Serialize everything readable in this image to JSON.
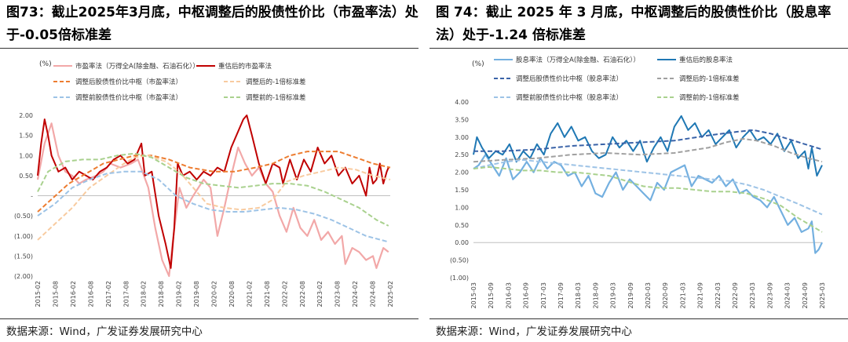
{
  "charts": [
    {
      "title": "图73：截止2025年3月底，中枢调整后的股债性价比（市盈率法）处于-0.05倍标准差",
      "source": "数据来源：Wind，广发证券发展研究中心"
    },
    {
      "title": "图 74：截止 2025 年 3 月底，中枢调整后的股债性价比（股息率法）处于-1.24 倍标准差",
      "source": "数据来源：Wind，广发证券发展研究中心"
    }
  ],
  "chart_data": [
    {
      "type": "line",
      "unit_label": "(%)",
      "ylim": [
        -2.0,
        2.0
      ],
      "yticks": [
        "2.00",
        "1.50",
        "1.00",
        "0.50",
        "-",
        "(0.50)",
        "(1.00)",
        "(1.50)",
        "(2.00)"
      ],
      "yvalues": [
        2.0,
        1.5,
        1.0,
        0.5,
        0,
        -0.5,
        -1.0,
        -1.5,
        -2.0
      ],
      "xticks": [
        "2015-02",
        "2015-08",
        "2016-02",
        "2016-08",
        "2017-02",
        "2017-08",
        "2018-02",
        "2018-08",
        "2019-02",
        "2019-08",
        "2020-02",
        "2020-08",
        "2021-02",
        "2021-08",
        "2022-02",
        "2022-08",
        "2023-02",
        "2023-08",
        "2024-02",
        "2024-08",
        "2025-02"
      ],
      "xlim": [
        2015.1,
        2025.3
      ],
      "legend": [
        "市盈率法（万得全A(除金融、石油石化））",
        "重估后的市盈率法",
        "调整后股债性价比中枢（市盈率法）",
        "调整后的-1倍标准差",
        "调整前股债性价比中枢（市盈率法）",
        "调整前的-1倍标准差"
      ],
      "series": [
        {
          "name": "市盈率法（万得全A(除金融、石油石化））",
          "color": "#f2a8a8",
          "style": "solid",
          "width": 2.2,
          "x": [
            2015.1,
            2015.3,
            2015.5,
            2015.7,
            2015.9,
            2016.1,
            2016.3,
            2016.5,
            2016.8,
            2017.0,
            2017.2,
            2017.5,
            2017.8,
            2018.0,
            2018.3,
            2018.5,
            2018.7,
            2018.9,
            2019.0,
            2019.2,
            2019.4,
            2019.6,
            2019.9,
            2020.1,
            2020.3,
            2020.5,
            2020.7,
            2020.9,
            2021.1,
            2021.3,
            2021.5,
            2021.7,
            2021.9,
            2022.1,
            2022.3,
            2022.5,
            2022.7,
            2022.9,
            2023.1,
            2023.3,
            2023.5,
            2023.7,
            2023.9,
            2024.0,
            2024.2,
            2024.4,
            2024.6,
            2024.8,
            2024.9,
            2025.1,
            2025.25
          ],
          "y": [
            0.4,
            1.3,
            1.8,
            1.0,
            0.6,
            0.5,
            0.3,
            0.4,
            0.5,
            0.6,
            0.8,
            0.7,
            0.8,
            0.9,
            0.2,
            -0.8,
            -1.6,
            -2.0,
            -1.2,
            0.2,
            -0.3,
            0.0,
            0.4,
            0.2,
            -1.0,
            -0.3,
            0.5,
            1.2,
            0.8,
            0.5,
            0.7,
            0.3,
            0.1,
            -0.5,
            -0.9,
            -0.3,
            -0.8,
            -1.0,
            -0.6,
            -1.1,
            -0.9,
            -1.2,
            -1.0,
            -1.7,
            -1.3,
            -1.4,
            -1.6,
            -1.5,
            -1.8,
            -1.3,
            -1.4
          ]
        },
        {
          "name": "重估后的市盈率法",
          "color": "#c00000",
          "style": "solid",
          "width": 2.0,
          "x": [
            2015.1,
            2015.2,
            2015.3,
            2015.4,
            2015.5,
            2015.6,
            2015.7,
            2015.9,
            2016.1,
            2016.3,
            2016.5,
            2016.7,
            2016.9,
            2017.1,
            2017.3,
            2017.5,
            2017.7,
            2017.9,
            2018.1,
            2018.2,
            2018.4,
            2018.6,
            2018.8,
            2018.95,
            2019.05,
            2019.15,
            2019.3,
            2019.5,
            2019.7,
            2019.9,
            2020.1,
            2020.3,
            2020.5,
            2020.7,
            2020.9,
            2021.05,
            2021.15,
            2021.3,
            2021.5,
            2021.7,
            2021.9,
            2022.1,
            2022.2,
            2022.4,
            2022.6,
            2022.8,
            2023.0,
            2023.2,
            2023.4,
            2023.6,
            2023.8,
            2024.0,
            2024.2,
            2024.4,
            2024.6,
            2024.7,
            2024.8,
            2024.9,
            2025.0,
            2025.1,
            2025.2,
            2025.25
          ],
          "y": [
            0.5,
            1.3,
            1.9,
            1.5,
            1.0,
            0.8,
            0.6,
            0.7,
            0.4,
            0.6,
            0.5,
            0.4,
            0.6,
            0.7,
            0.9,
            1.0,
            0.8,
            0.9,
            1.3,
            0.5,
            0.6,
            -0.5,
            -1.2,
            -1.8,
            -0.8,
            0.8,
            0.5,
            0.6,
            0.4,
            0.6,
            0.5,
            0.7,
            0.6,
            1.2,
            1.6,
            1.9,
            2.0,
            1.5,
            0.8,
            0.3,
            0.8,
            0.7,
            0.3,
            0.9,
            0.4,
            0.9,
            0.6,
            1.2,
            0.8,
            1.0,
            0.5,
            0.7,
            0.3,
            0.5,
            0.0,
            0.7,
            0.3,
            0.4,
            0.8,
            0.3,
            0.6,
            0.7
          ]
        },
        {
          "name": "调整后股债性价比中枢（市盈率法）",
          "color": "#ed7d31",
          "style": "dash",
          "width": 2.0,
          "x": [
            2015.1,
            2016.0,
            2017.0,
            2017.9,
            2018.4,
            2018.9,
            2019.5,
            2020.2,
            2020.8,
            2021.4,
            2021.9,
            2022.4,
            2022.9,
            2023.3,
            2023.8,
            2024.3,
            2024.8,
            2025.3
          ],
          "y": [
            -0.4,
            0.3,
            0.8,
            1.0,
            1.0,
            0.9,
            0.7,
            0.6,
            0.6,
            0.7,
            0.8,
            1.0,
            1.1,
            1.1,
            1.1,
            0.95,
            0.8,
            0.7
          ]
        },
        {
          "name": "调整后的-1倍标准差",
          "color": "#f8cba0",
          "style": "dash",
          "width": 2.0,
          "x": [
            2015.1,
            2015.6,
            2016.1,
            2016.6,
            2017.1,
            2017.6,
            2017.9,
            2018.3,
            2018.8,
            2019.2,
            2019.6,
            2020.0,
            2020.5,
            2021.0,
            2021.5,
            2021.9,
            2022.3,
            2022.8,
            2023.3,
            2023.8,
            2024.3,
            2024.8,
            2025.3
          ],
          "y": [
            -1.1,
            -0.7,
            -0.3,
            0.2,
            0.5,
            0.8,
            0.95,
            1.0,
            0.85,
            0.6,
            0.2,
            -0.2,
            -0.3,
            -0.35,
            -0.3,
            -0.1,
            0.35,
            0.5,
            0.6,
            0.7,
            0.65,
            0.5,
            0.4
          ]
        },
        {
          "name": "调整前股债性价比中枢（市盈率法）",
          "color": "#9dc3e6",
          "style": "dash",
          "width": 2.0,
          "x": [
            2015.1,
            2015.6,
            2016.1,
            2016.6,
            2017.1,
            2017.6,
            2018.1,
            2018.6,
            2019.1,
            2019.6,
            2020.1,
            2020.6,
            2021.1,
            2021.6,
            2022.1,
            2022.6,
            2023.1,
            2023.6,
            2024.1,
            2024.6,
            2025.25
          ],
          "y": [
            -0.5,
            -0.2,
            0.2,
            0.4,
            0.55,
            0.6,
            0.6,
            0.4,
            0.0,
            -0.2,
            -0.35,
            -0.4,
            -0.4,
            -0.35,
            -0.3,
            -0.35,
            -0.45,
            -0.6,
            -0.8,
            -1.0,
            -1.15
          ]
        },
        {
          "name": "调整前的-1倍标准差",
          "color": "#a9d18e",
          "style": "dash",
          "width": 2.0,
          "x": [
            2015.1,
            2015.4,
            2015.9,
            2016.4,
            2016.9,
            2017.4,
            2017.9,
            2018.4,
            2018.9,
            2019.4,
            2019.9,
            2020.4,
            2020.9,
            2021.4,
            2021.9,
            2022.4,
            2022.9,
            2023.4,
            2023.9,
            2024.4,
            2024.9,
            2025.25
          ],
          "y": [
            0.1,
            0.6,
            0.85,
            0.9,
            0.9,
            1.0,
            1.05,
            0.95,
            0.7,
            0.45,
            0.3,
            0.25,
            0.2,
            0.25,
            0.3,
            0.3,
            0.25,
            0.1,
            -0.1,
            -0.3,
            -0.6,
            -0.75
          ]
        }
      ]
    },
    {
      "type": "line",
      "unit_label": "(%)",
      "ylim": [
        -1.0,
        4.0
      ],
      "yticks": [
        "4.00",
        "3.50",
        "3.00",
        "2.50",
        "2.00",
        "1.50",
        "1.00",
        "0.50",
        "0.00",
        "(0.50)",
        "(1.00)"
      ],
      "yvalues": [
        4.0,
        3.5,
        3.0,
        2.5,
        2.0,
        1.5,
        1.0,
        0.5,
        0.0,
        -0.5,
        -1.0
      ],
      "xticks": [
        "2015-03",
        "2015-09",
        "2016-03",
        "2016-09",
        "2017-03",
        "2017-09",
        "2018-03",
        "2018-09",
        "2019-03",
        "2019-09",
        "2020-03",
        "2020-09",
        "2021-03",
        "2021-09",
        "2022-03",
        "2022-09",
        "2023-03",
        "2023-09",
        "2024-03",
        "2024-09",
        "2025-03"
      ],
      "xlim": [
        2015.15,
        2025.3
      ],
      "legend": [
        "股息率法（万得全A(除金融、石油石化））",
        "重估后的股息率法",
        "调整后股债性价比中枢（股息率法）",
        "调整后的-1倍标准差",
        "调整前股债性价比中枢（股息率法）",
        "调整前的-1倍标准差"
      ],
      "series": [
        {
          "name": "股息率法（万得全A(除金融、石油石化））",
          "color": "#74b0e0",
          "style": "solid",
          "width": 2.2,
          "x": [
            2015.15,
            2015.3,
            2015.5,
            2015.7,
            2015.9,
            2016.1,
            2016.3,
            2016.5,
            2016.7,
            2016.9,
            2017.1,
            2017.3,
            2017.5,
            2017.7,
            2017.9,
            2018.1,
            2018.3,
            2018.5,
            2018.7,
            2018.9,
            2019.1,
            2019.3,
            2019.5,
            2019.7,
            2019.9,
            2020.1,
            2020.3,
            2020.5,
            2020.7,
            2020.9,
            2021.1,
            2021.3,
            2021.5,
            2021.7,
            2021.9,
            2022.1,
            2022.3,
            2022.5,
            2022.7,
            2022.9,
            2023.1,
            2023.3,
            2023.5,
            2023.7,
            2023.9,
            2024.1,
            2024.3,
            2024.5,
            2024.7,
            2024.9,
            2025.0,
            2025.1,
            2025.2,
            2025.3
          ],
          "y": [
            2.1,
            2.2,
            2.5,
            2.2,
            1.9,
            2.4,
            1.8,
            2.0,
            2.3,
            2.0,
            2.4,
            2.1,
            2.3,
            2.2,
            1.9,
            2.0,
            1.6,
            1.9,
            1.4,
            1.3,
            1.7,
            2.0,
            1.5,
            1.8,
            1.6,
            1.4,
            1.2,
            1.7,
            1.5,
            2.0,
            2.1,
            2.2,
            1.6,
            1.9,
            1.8,
            1.7,
            1.9,
            1.6,
            1.8,
            1.4,
            1.5,
            1.3,
            1.2,
            1.0,
            1.3,
            0.9,
            0.5,
            0.7,
            0.3,
            0.4,
            0.6,
            -0.3,
            -0.2,
            0.0
          ]
        },
        {
          "name": "重估后的股息率法",
          "color": "#1f78b4",
          "style": "solid",
          "width": 2.0,
          "x": [
            2015.15,
            2015.25,
            2015.4,
            2015.6,
            2015.8,
            2016.0,
            2016.2,
            2016.4,
            2016.6,
            2016.8,
            2017.0,
            2017.2,
            2017.4,
            2017.6,
            2017.8,
            2018.0,
            2018.2,
            2018.4,
            2018.6,
            2018.8,
            2019.0,
            2019.2,
            2019.4,
            2019.6,
            2019.8,
            2020.0,
            2020.2,
            2020.4,
            2020.6,
            2020.8,
            2021.0,
            2021.2,
            2021.4,
            2021.6,
            2021.8,
            2022.0,
            2022.2,
            2022.4,
            2022.6,
            2022.8,
            2023.0,
            2023.2,
            2023.4,
            2023.6,
            2023.8,
            2024.0,
            2024.2,
            2024.4,
            2024.6,
            2024.8,
            2024.9,
            2025.0,
            2025.15,
            2025.3
          ],
          "y": [
            2.5,
            3.0,
            2.7,
            2.4,
            2.6,
            2.5,
            2.8,
            2.3,
            2.6,
            2.4,
            2.8,
            2.5,
            3.1,
            3.4,
            3.0,
            3.3,
            2.9,
            3.0,
            2.6,
            2.4,
            2.5,
            3.0,
            2.7,
            2.9,
            2.6,
            2.9,
            2.3,
            2.7,
            3.0,
            2.6,
            3.3,
            3.6,
            3.2,
            3.4,
            3.0,
            3.2,
            2.8,
            3.0,
            3.2,
            2.7,
            3.0,
            3.2,
            2.9,
            3.0,
            2.8,
            3.1,
            2.6,
            2.9,
            2.4,
            2.6,
            2.1,
            2.7,
            1.9,
            2.2
          ]
        },
        {
          "name": "调整后股债性价比中枢（股息率法）",
          "color": "#3a63a8",
          "style": "dash",
          "width": 2.0,
          "x": [
            2015.15,
            2016.0,
            2017.0,
            2018.0,
            2019.0,
            2020.0,
            2021.0,
            2022.0,
            2022.8,
            2023.3,
            2023.8,
            2024.3,
            2024.8,
            2025.3
          ],
          "y": [
            2.6,
            2.6,
            2.65,
            2.75,
            2.8,
            2.85,
            2.9,
            3.05,
            3.15,
            3.2,
            3.1,
            2.95,
            2.8,
            2.65
          ]
        },
        {
          "name": "调整后的-1倍标准差",
          "color": "#a0a0a0",
          "style": "dash",
          "width": 2.0,
          "x": [
            2015.15,
            2016.0,
            2017.0,
            2018.0,
            2019.0,
            2020.0,
            2021.0,
            2022.0,
            2022.5,
            2023.0,
            2023.4,
            2023.9,
            2024.4,
            2024.9,
            2025.3
          ],
          "y": [
            2.3,
            2.35,
            2.4,
            2.5,
            2.55,
            2.5,
            2.55,
            2.7,
            2.85,
            2.95,
            2.9,
            2.75,
            2.55,
            2.4,
            2.3
          ]
        },
        {
          "name": "调整前股债性价比中枢（股息率法）",
          "color": "#9dc3e6",
          "style": "dash",
          "width": 2.0,
          "x": [
            2015.15,
            2015.6,
            2016.1,
            2016.6,
            2017.1,
            2017.6,
            2018.1,
            2018.6,
            2019.1,
            2019.6,
            2020.1,
            2020.6,
            2021.1,
            2021.6,
            2022.1,
            2022.6,
            2023.1,
            2023.6,
            2024.1,
            2024.6,
            2025.3
          ],
          "y": [
            2.1,
            2.2,
            2.3,
            2.35,
            2.3,
            2.25,
            2.2,
            2.15,
            2.1,
            2.05,
            2.0,
            1.95,
            1.9,
            1.85,
            1.8,
            1.75,
            1.65,
            1.5,
            1.3,
            1.1,
            0.8
          ]
        },
        {
          "name": "调整前的-1倍标准差",
          "color": "#a9d18e",
          "style": "dash",
          "width": 2.0,
          "x": [
            2015.15,
            2015.6,
            2016.1,
            2016.6,
            2017.1,
            2017.6,
            2018.1,
            2018.6,
            2019.1,
            2019.6,
            2020.1,
            2020.6,
            2021.1,
            2021.6,
            2022.1,
            2022.6,
            2023.1,
            2023.6,
            2024.1,
            2024.6,
            2025.3
          ],
          "y": [
            2.1,
            2.15,
            2.1,
            2.05,
            2.05,
            2.0,
            2.0,
            1.95,
            1.9,
            1.75,
            1.6,
            1.55,
            1.55,
            1.5,
            1.45,
            1.45,
            1.4,
            1.25,
            1.05,
            0.7,
            0.3
          ]
        }
      ]
    }
  ]
}
